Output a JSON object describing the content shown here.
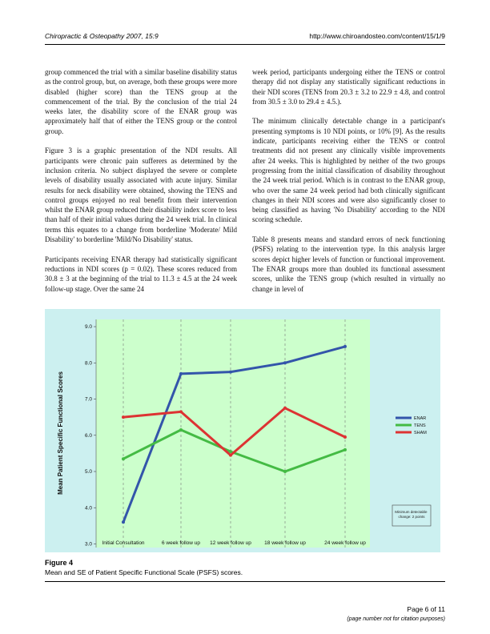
{
  "header": {
    "journal": "Chiropractic & Osteopathy 2007, 15:9",
    "url": "http://www.chiroandosteo.com/content/15/1/9"
  },
  "body": {
    "left": [
      "group commenced the trial with a similar baseline disability status as the control group, but, on average, both these groups were more disabled (higher score) than the TENS group at the commencement of the trial. By the conclusion of the trial 24 weeks later, the disability score of the ENAR group was approximately half that of either the TENS group or the control group.",
      "Figure 3 is a graphic presentation of the NDI results. All participants were chronic pain sufferers as determined by the inclusion criteria. No subject displayed the severe or complete levels of disability usually associated with acute injury. Similar results for neck disability were obtained, showing the TENS and control groups enjoyed no real benefit from their intervention whilst the ENAR group reduced their disability index score to less than half of their initial values during the 24 week trial. In clinical terms this equates to a change from borderline 'Moderate/ Mild Disability' to borderline 'Mild/No Disability' status.",
      "Participants receiving ENAR therapy had statistically significant reductions in NDI scores (p = 0.02). These scores reduced from 30.8 ± 3 at the beginning of the trial to 11.3 ± 4.5 at the 24 week follow-up stage. Over the same 24"
    ],
    "right": [
      "week period, participants undergoing either the TENS or control therapy did not display any statistically significant reductions in their NDI scores (TENS from 20.3 ± 3.2 to 22.9 ± 4.8, and control from 30.5 ± 3.0 to 29.4 ± 4.5.).",
      "The minimum clinically detectable change in a participant's presenting symptoms is 10 NDI points, or 10% [9]. As the results indicate, participants receiving either the TENS or control treatments did not present any clinically visible improvements after 24 weeks. This is highlighted by neither of the two groups progressing from the initial classification of disability throughout the 24 week trial period. Which is in contrast to the ENAR group, who over the same 24 week period had both clinically significant changes in their NDI scores and were also significantly closer to being classified as having 'No Disability' according to the NDI scoring schedule.",
      "Table 8 presents means and standard errors of neck functioning (PSFS) relating to the intervention type. In this analysis larger scores depict higher levels of function or functional improvement. The ENAR groups more than doubled its functional assessment scores, unlike the TENS group (which resulted in virtually no change in level of"
    ]
  },
  "figure": {
    "label": "Figure 4",
    "caption": "Mean and SE of Patient Specific Functional Scale (PSFS) scores."
  },
  "chart_data": {
    "type": "line",
    "categories": [
      "Initial Consultation",
      "6 week follow up",
      "12 week follow up",
      "18 week follow up",
      "24 week follow up"
    ],
    "series": [
      {
        "name": "ENAR",
        "color": "#3355aa",
        "values": [
          3.6,
          7.7,
          7.75,
          8.0,
          8.45
        ]
      },
      {
        "name": "TENS",
        "color": "#44bb44",
        "values": [
          5.35,
          6.15,
          5.55,
          5.0,
          5.6
        ]
      },
      {
        "name": "SHAM",
        "color": "#dd3333",
        "values": [
          6.5,
          6.65,
          5.45,
          6.75,
          5.95
        ]
      }
    ],
    "ylabel": "Mean Patient Specific Functional Scores",
    "ylim": [
      2.9,
      9.2
    ],
    "yticks": [
      "3.0",
      "4.0",
      "5.0",
      "6.0",
      "7.0",
      "8.0",
      "9.0"
    ],
    "grid": "vertical dashed",
    "legend": "right",
    "plot_bg": "#ccffcc",
    "figure_bg": "#ccf0f0",
    "note": "Minimum detectable change: 2 points"
  },
  "footer": {
    "page": "Page 6 of 11",
    "note": "(page number not for citation purposes)"
  }
}
